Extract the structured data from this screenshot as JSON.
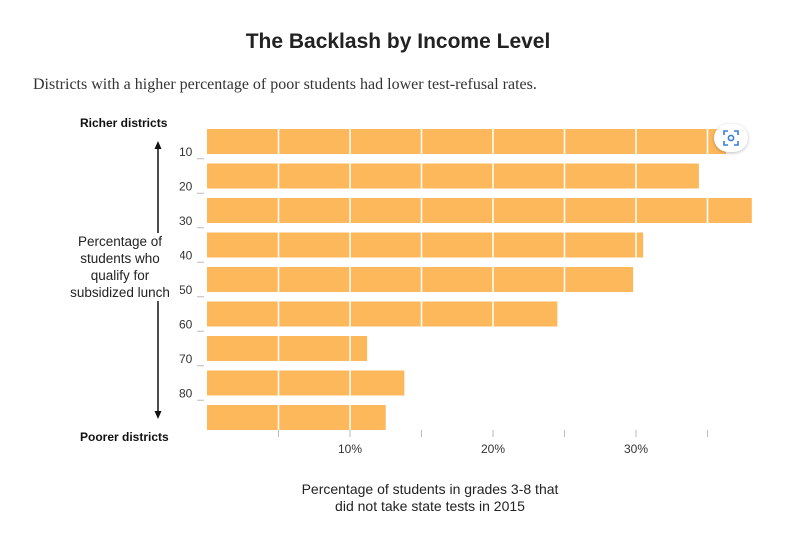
{
  "chart_data": {
    "type": "bar",
    "orientation": "horizontal",
    "title": "The Backlash by Income Level",
    "subtitle": "Districts with a higher percentage of poor students had lower test-refusal rates.",
    "ylabel": "Percentage of students who qualify for subsidized lunch",
    "xlabel": "Percentage of students in grades 3-8 that did not take state tests in 2015",
    "y_top_label": "Richer districts",
    "y_bottom_label": "Poorer districts",
    "y_ticks": [
      "10",
      "20",
      "30",
      "40",
      "50",
      "60",
      "70",
      "80"
    ],
    "x_ticks": [
      "10%",
      "20%",
      "30%"
    ],
    "x_tick_values": [
      10,
      20,
      30
    ],
    "values": [
      36.3,
      34.4,
      38.1,
      30.5,
      29.8,
      24.5,
      11.2,
      13.8,
      12.5
    ],
    "xlim": [
      0,
      38.1
    ],
    "bar_color": "#fdb85c",
    "grid": true
  },
  "zoom_button": {
    "icon": "zoom-icon"
  }
}
